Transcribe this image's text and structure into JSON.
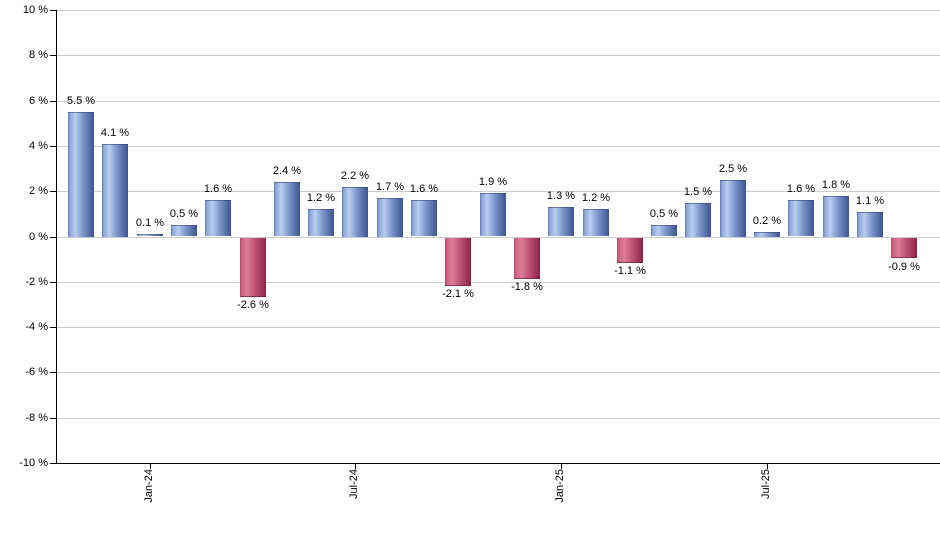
{
  "chart_data": {
    "type": "bar",
    "title": "",
    "values": [
      5.5,
      4.1,
      0.1,
      0.5,
      1.6,
      -2.6,
      2.4,
      1.2,
      2.2,
      1.7,
      1.6,
      -2.1,
      1.9,
      -1.8,
      1.3,
      1.2,
      -1.1,
      0.5,
      1.5,
      2.5,
      0.2,
      1.6,
      1.8,
      1.1,
      -0.9
    ],
    "bar_labels": [
      "5.5 %",
      "4.1 %",
      "0.1 %",
      "0.5 %",
      "1.6 %",
      "-2.6 %",
      "2.4 %",
      "1.2 %",
      "2.2 %",
      "1.7 %",
      "1.6 %",
      "-2.1 %",
      "1.9 %",
      "-1.8 %",
      "1.3 %",
      "1.2 %",
      "-1.1 %",
      "0.5 %",
      "1.5 %",
      "2.5 %",
      "0.2 %",
      "1.6 %",
      "1.8 %",
      "1.1 %",
      "-0.9 %"
    ],
    "y_axis": {
      "min": -10,
      "max": 10,
      "tick_step": 2,
      "tick_values": [
        10,
        8,
        6,
        4,
        2,
        0,
        -2,
        -4,
        -6,
        -8,
        -10
      ],
      "tick_labels": [
        "10 %",
        "8 %",
        "6 %",
        "4 %",
        "2 %",
        "0 %",
        "-2 %",
        "-4 %",
        "-6 %",
        "-8 %",
        "-10 %"
      ]
    },
    "x_axis": {
      "ticks": [
        {
          "label": "Jan-24",
          "bar_index": 2
        },
        {
          "label": "Jul-24",
          "bar_index": 8
        },
        {
          "label": "Jan-25",
          "bar_index": 14
        },
        {
          "label": "Jul-25",
          "bar_index": 20
        }
      ]
    },
    "grid": "horizontal",
    "legend": "none",
    "colors": {
      "positive_bar_gradient": [
        "#6080b8",
        "#8fa9d9",
        "#b9cdee",
        "#7592c7",
        "#3d5490"
      ],
      "negative_bar_gradient": [
        "#b04568",
        "#cb6582",
        "#dd7e97",
        "#bd5076",
        "#8c2345"
      ],
      "gridline": "#cccccc",
      "axis": "#000000",
      "text": "#000000",
      "background": "#ffffff"
    }
  }
}
